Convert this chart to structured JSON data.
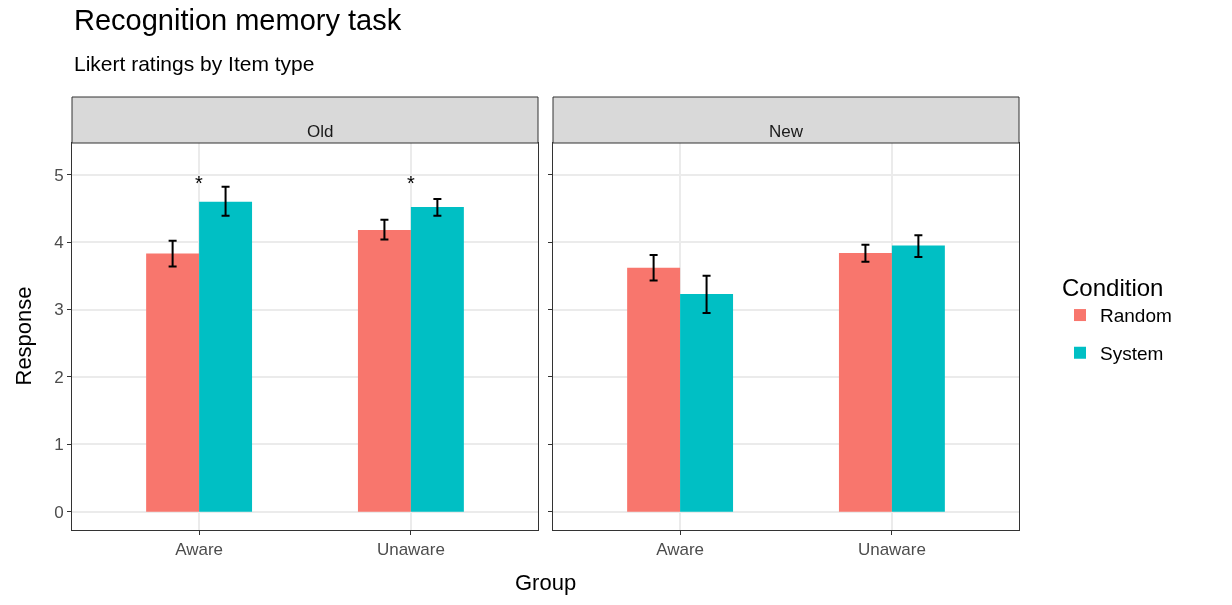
{
  "chart_data": [
    {
      "type": "bar",
      "title": "Recognition memory task",
      "subtitle": "Likert ratings by Item type",
      "xlabel": "Group",
      "ylabel": "Response",
      "legend_title": "Condition",
      "annotations": [
        "Old",
        "*",
        "*"
      ],
      "categories": [
        "Aware",
        "Unaware"
      ],
      "series": [
        {
          "name": "Random",
          "color": "#f8766d",
          "values": [
            3.83,
            4.18
          ],
          "errors": [
            [
              3.64,
              4.02
            ],
            [
              4.04,
              4.33
            ]
          ]
        },
        {
          "name": "System",
          "color": "#00bfc4",
          "values": [
            4.6,
            4.52
          ],
          "errors": [
            [
              4.39,
              4.82
            ],
            [
              4.39,
              4.64
            ]
          ]
        }
      ],
      "ylim": [
        -0.27,
        5.47
      ],
      "yticks": [
        0,
        1,
        2,
        3,
        4,
        5
      ],
      "grid": true,
      "legend": "right"
    },
    {
      "type": "bar",
      "annotations": [
        "New"
      ],
      "categories": [
        "Aware",
        "Unaware"
      ],
      "series": [
        {
          "color": "#f8766d",
          "values": [
            3.62,
            3.84
          ],
          "errors": [
            [
              3.43,
              3.81
            ],
            [
              3.71,
              3.96
            ]
          ]
        },
        {
          "color": "#00bfc4",
          "values": [
            3.23,
            3.95
          ],
          "errors": [
            [
              2.95,
              3.5
            ],
            [
              3.78,
              4.1
            ]
          ]
        }
      ],
      "ylim": [
        -0.27,
        5.47
      ],
      "yticks": [
        0,
        1,
        2,
        3,
        4,
        5
      ],
      "grid": true,
      "tick_labels": "x"
    }
  ]
}
